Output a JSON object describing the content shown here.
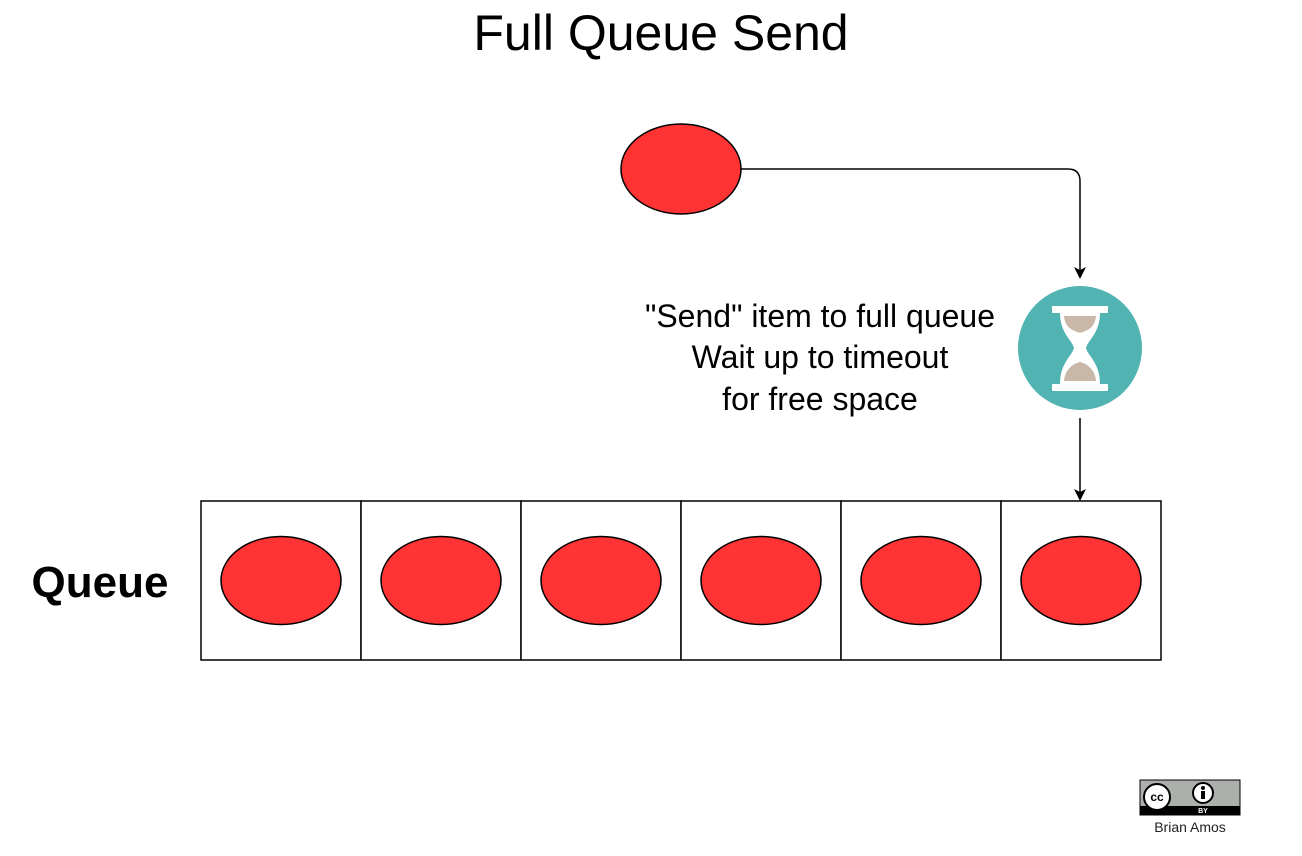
{
  "title": "Full Queue Send",
  "caption": {
    "lines": [
      "\"Send\" item to full queue",
      "Wait up to timeout",
      "for free space"
    ]
  },
  "queue": {
    "label": "Queue",
    "slot_count": 6,
    "filled_slots": 6
  },
  "license": {
    "badge_glyph": "cc",
    "badge_code": "BY",
    "author": "Brian Amos"
  },
  "colors": {
    "item_fill": "#ff3333",
    "item_stroke": "#000000",
    "timer_circle": "#52b3b3",
    "timer_sand": "#c9b8a8",
    "timer_glass": "#ffffff",
    "line": "#000000",
    "badge_bg": "#abb1aa"
  },
  "icons": {
    "timer": "hourglass-icon",
    "license": "cc-by-license-icon"
  }
}
